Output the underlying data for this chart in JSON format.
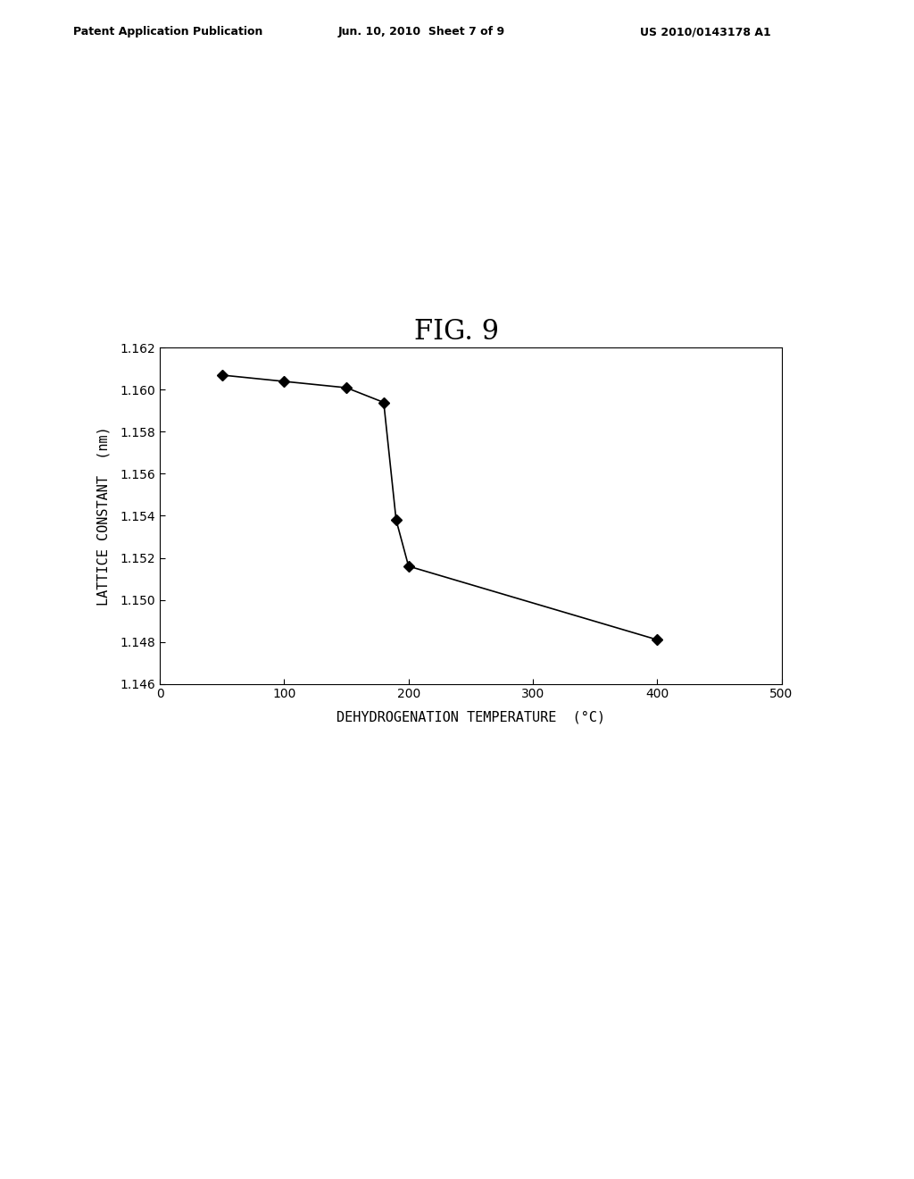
{
  "title": "FIG. 9",
  "xlabel": "DEHYDROGENATION TEMPERATURE  (°C)",
  "ylabel": "LATTICE CONSTANT  (nm)",
  "x_data": [
    50,
    100,
    150,
    180,
    190,
    200,
    400
  ],
  "y_data": [
    1.1607,
    1.1604,
    1.1601,
    1.1594,
    1.1538,
    1.1516,
    1.1481
  ],
  "xlim": [
    0,
    500
  ],
  "ylim": [
    1.146,
    1.162
  ],
  "xticks": [
    0,
    100,
    200,
    300,
    400,
    500
  ],
  "yticks": [
    1.146,
    1.148,
    1.15,
    1.152,
    1.154,
    1.156,
    1.158,
    1.16,
    1.162
  ],
  "line_color": "#000000",
  "marker_color": "#000000",
  "header_left": "Patent Application Publication",
  "header_center": "Jun. 10, 2010  Sheet 7 of 9",
  "header_right": "US 2010/0143178 A1",
  "background_color": "#ffffff",
  "title_fontsize": 22,
  "axis_label_fontsize": 11,
  "tick_fontsize": 10,
  "header_fontsize": 9
}
